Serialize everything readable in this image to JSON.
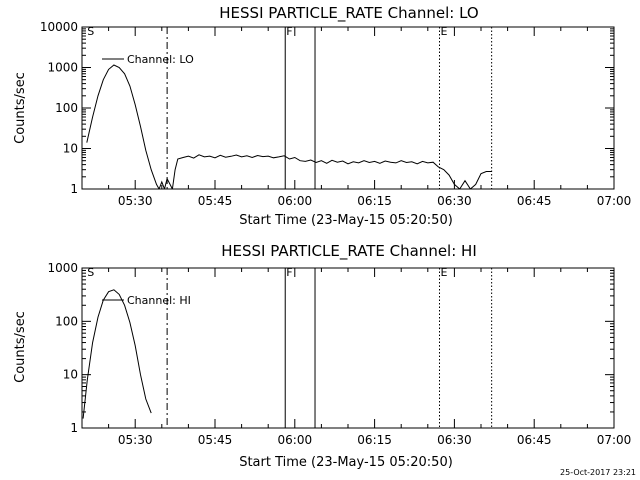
{
  "timestamp": "25-Oct-2017 23:21",
  "chart_data": [
    {
      "type": "line",
      "title": "HESSI PARTICLE_RATE Channel: LO",
      "xlabel": "Start Time (23-May-15 05:20:50)",
      "ylabel": "Counts/sec",
      "x_unit": "minutes since 05:20",
      "xlim": [
        0,
        100
      ],
      "ylim": [
        1,
        10000
      ],
      "y_scale": "log",
      "y_ticks": [
        1,
        10,
        100,
        1000,
        10000
      ],
      "y_tick_labels": [
        "1",
        "10",
        "100",
        "1000",
        "10000"
      ],
      "x_ticks": [
        10,
        25,
        40,
        55,
        70,
        85,
        100
      ],
      "x_tick_labels": [
        "05:30",
        "05:45",
        "06:00",
        "06:15",
        "06:30",
        "06:45",
        "07:00"
      ],
      "legend": {
        "entries": [
          "Channel: LO"
        ],
        "placement": "top-left"
      },
      "markers": [
        {
          "label": "S",
          "x": 0.8,
          "style": "none"
        },
        {
          "label": "",
          "x": 16.0,
          "style": "dashdot"
        },
        {
          "label": "F",
          "x": 38.2,
          "style": "solid"
        },
        {
          "label": "",
          "x": 43.8,
          "style": "solid"
        },
        {
          "label": "E",
          "x": 67.2,
          "style": "dotted"
        },
        {
          "label": "",
          "x": 77.0,
          "style": "dotted"
        }
      ],
      "series": [
        {
          "name": "Channel: LO",
          "x": [
            0.9,
            2,
            3,
            4,
            5,
            6,
            7,
            8,
            9,
            10,
            11,
            12,
            13,
            14,
            14.5,
            15,
            15.5,
            16,
            17,
            17.5,
            18,
            19,
            20,
            21,
            22,
            23,
            24,
            25,
            26,
            27,
            28,
            29,
            30,
            31,
            32,
            33,
            34,
            35,
            36,
            37,
            38,
            39,
            40,
            41,
            42,
            43,
            44,
            45,
            46,
            47,
            48,
            49,
            50,
            51,
            52,
            53,
            54,
            55,
            56,
            57,
            58,
            59,
            60,
            61,
            62,
            63,
            64,
            65,
            66,
            67,
            68,
            69,
            70,
            71,
            72,
            73,
            74,
            75,
            76,
            77
          ],
          "y": [
            14,
            60,
            200,
            500,
            900,
            1150,
            1000,
            700,
            350,
            120,
            35,
            9,
            3,
            1.3,
            1.0,
            1.5,
            1.0,
            1.8,
            1.0,
            3,
            5.5,
            6,
            6.5,
            5.8,
            7,
            6.2,
            6.5,
            5.9,
            6.8,
            6.1,
            6.4,
            6.9,
            6.2,
            6.6,
            6.0,
            6.7,
            6.3,
            6.5,
            5.9,
            6.2,
            6.6,
            5.5,
            6.0,
            5.0,
            4.8,
            5.2,
            4.5,
            5.0,
            4.3,
            5.1,
            4.6,
            4.9,
            4.2,
            4.7,
            4.4,
            5.0,
            4.5,
            4.8,
            4.3,
            4.9,
            4.6,
            4.4,
            5.0,
            4.5,
            4.7,
            4.2,
            4.8,
            4.4,
            4.6,
            3.5,
            3.0,
            2.2,
            1.3,
            1.0,
            1.6,
            1.0,
            1.3,
            2.4,
            2.7,
            2.7
          ]
        }
      ]
    },
    {
      "type": "line",
      "title": "HESSI PARTICLE_RATE Channel: HI",
      "xlabel": "Start Time (23-May-15 05:20:50)",
      "ylabel": "Counts/sec",
      "x_unit": "minutes since 05:20",
      "xlim": [
        0,
        100
      ],
      "ylim": [
        1,
        1000
      ],
      "y_scale": "log",
      "y_ticks": [
        1,
        10,
        100,
        1000
      ],
      "y_tick_labels": [
        "1",
        "10",
        "100",
        "1000"
      ],
      "x_ticks": [
        10,
        25,
        40,
        55,
        70,
        85,
        100
      ],
      "x_tick_labels": [
        "05:30",
        "05:45",
        "06:00",
        "06:15",
        "06:30",
        "06:45",
        "07:00"
      ],
      "legend": {
        "entries": [
          "Channel: HI"
        ],
        "placement": "top-left"
      },
      "markers": [
        {
          "label": "S",
          "x": 0.8,
          "style": "none"
        },
        {
          "label": "",
          "x": 16.0,
          "style": "dashdot"
        },
        {
          "label": "F",
          "x": 38.2,
          "style": "solid"
        },
        {
          "label": "",
          "x": 43.8,
          "style": "solid"
        },
        {
          "label": "E",
          "x": 67.2,
          "style": "dotted"
        },
        {
          "label": "",
          "x": 77.0,
          "style": "dotted"
        }
      ],
      "series": [
        {
          "name": "Channel: HI",
          "x": [
            0.2,
            1,
            2,
            3,
            4,
            5,
            6,
            7,
            8,
            9,
            10,
            11,
            12,
            13
          ],
          "y": [
            1.5,
            8,
            40,
            120,
            250,
            360,
            390,
            320,
            200,
            95,
            35,
            10,
            3.5,
            1.9
          ]
        }
      ]
    }
  ]
}
